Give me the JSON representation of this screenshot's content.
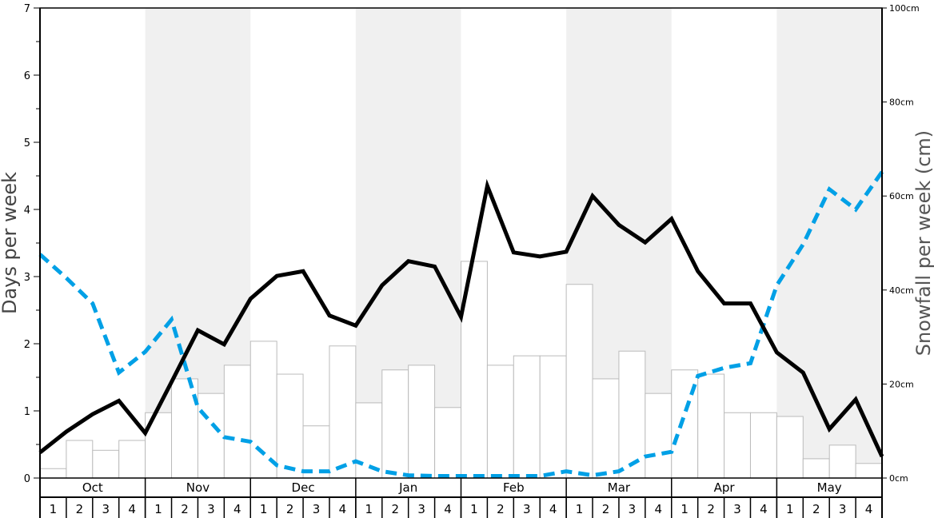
{
  "chart_data": {
    "type": "bar",
    "title": "",
    "ylabel": "Days per week",
    "y2label": "Snowfall per week (cm)",
    "ylim": [
      0,
      7
    ],
    "y2lim": [
      0,
      100
    ],
    "yticks": [
      "0",
      "1",
      "2",
      "3",
      "4",
      "5",
      "6",
      "7"
    ],
    "y2ticks": [
      "0cm",
      "20cm",
      "40cm",
      "60cm",
      "80cm",
      "100cm"
    ],
    "months": [
      "Oct",
      "Nov",
      "Dec",
      "Jan",
      "Feb",
      "Mar",
      "Apr",
      "May"
    ],
    "weeks": [
      "1",
      "2",
      "3",
      "4"
    ],
    "shaded_months": [
      "Nov",
      "Jan",
      "Mar",
      "May"
    ],
    "colors": {
      "bars": "#ffffff",
      "bar_stroke": "#bbbbbb",
      "line": "#000000",
      "dashed": "#00a0e6",
      "shade": "#f0f0f0"
    },
    "bars_cm": [
      2,
      8,
      5.9,
      8,
      13.9,
      21.1,
      18,
      24,
      29.1,
      22.1,
      11.1,
      28.1,
      16,
      23,
      24,
      15,
      46.1,
      24,
      26,
      26,
      41.2,
      21.1,
      27,
      18,
      23,
      22.1,
      13.9,
      13.9,
      13.1,
      4.1,
      7,
      3.1
    ],
    "line_days": [
      0.38,
      0.69,
      0.95,
      1.15,
      0.67,
      1.43,
      2.2,
      1.99,
      2.67,
      3.01,
      3.08,
      2.42,
      2.27,
      2.87,
      3.23,
      3.15,
      2.4,
      4.35,
      3.36,
      3.3,
      3.37,
      4.2,
      3.77,
      3.51,
      3.86,
      3.08,
      2.6,
      2.6,
      1.87,
      1.57,
      0.73,
      1.17,
      0.32
    ],
    "dashed_days": [
      3.33,
      2.98,
      2.6,
      1.57,
      1.88,
      2.36,
      1.05,
      0.61,
      0.54,
      0.19,
      0.1,
      0.1,
      0.25,
      0.1,
      0.04,
      0.03,
      0.03,
      0.03,
      0.03,
      0.03,
      0.1,
      0.04,
      0.1,
      0.32,
      0.39,
      1.52,
      1.64,
      1.71,
      2.87,
      3.48,
      4.3,
      4.0,
      4.56
    ]
  }
}
